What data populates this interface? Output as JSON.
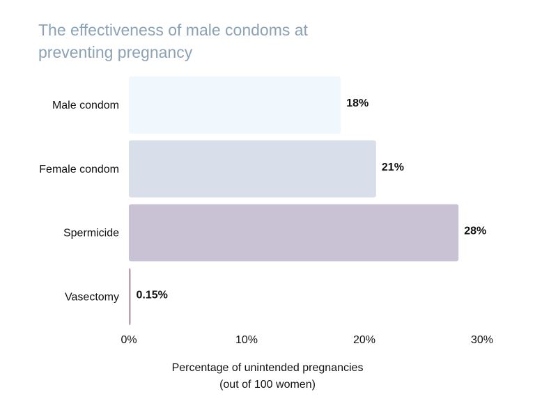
{
  "chart_data": {
    "type": "bar",
    "orientation": "horizontal",
    "title": [
      "The effectiveness of male condoms at",
      "preventing pregnancy"
    ],
    "xlabel": [
      "Percentage of unintended pregnancies",
      "(out of 100 women)"
    ],
    "categories": [
      "Male condom",
      "Female condom",
      "Spermicide",
      "Vasectomy"
    ],
    "values": [
      18,
      21,
      28,
      0.15
    ],
    "value_labels": [
      "18%",
      "21%",
      "28%",
      "0.15%"
    ],
    "colors": [
      "#f0f7fd",
      "#d9dfea",
      "#c9c1d4",
      "#b99fb1"
    ],
    "xlim": [
      0,
      30
    ],
    "xticks": [
      {
        "value": 0,
        "label": "0%"
      },
      {
        "value": 10,
        "label": "10%"
      },
      {
        "value": 20,
        "label": "20%"
      },
      {
        "value": 30,
        "label": "30%"
      }
    ],
    "grid": false
  }
}
